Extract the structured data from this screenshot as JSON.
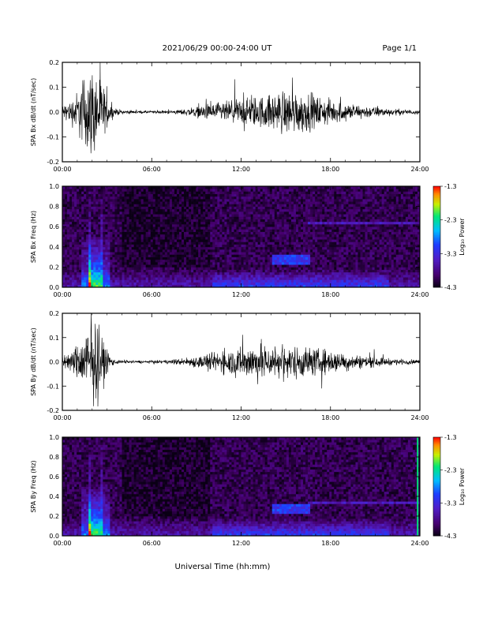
{
  "header": {
    "title": "2021/06/29  00:00-24:00 UT",
    "page": "Page 1/1"
  },
  "xlabel": "Universal Time (hh:mm)",
  "colorbar": {
    "label": "Log₁₀ Power",
    "ticks": [
      "-1.3",
      "-2.3",
      "-3.3",
      "-4.3"
    ],
    "range": [
      -4.3,
      -1.3
    ]
  },
  "chart_data": [
    {
      "type": "line",
      "ylabel": "SPA Bx dB/dt (nT/sec)",
      "xticks": [
        "00:00",
        "06:00",
        "12:00",
        "18:00",
        "24:00"
      ],
      "xlim": [
        0,
        24
      ],
      "yticks": [
        "0.2",
        "0.1",
        "0.0",
        "-0.1",
        "-0.2"
      ],
      "ylim": [
        -0.2,
        0.2
      ],
      "envelope": {
        "hours": [
          0,
          0.5,
          1,
          1.5,
          2,
          2.5,
          3,
          3.5,
          4,
          5,
          6,
          7,
          8,
          9,
          10,
          11,
          12,
          13,
          14,
          15,
          16,
          17,
          18,
          19,
          20,
          21,
          22,
          23,
          24
        ],
        "amplitude": [
          0.04,
          0.06,
          0.12,
          0.22,
          0.25,
          0.22,
          0.08,
          0.02,
          0.012,
          0.008,
          0.008,
          0.009,
          0.015,
          0.03,
          0.05,
          0.06,
          0.08,
          0.09,
          0.1,
          0.13,
          0.12,
          0.09,
          0.07,
          0.05,
          0.04,
          0.03,
          0.02,
          0.015,
          0.012
        ]
      }
    },
    {
      "type": "heatmap",
      "ylabel": "SPA Bx Freq (Hz)",
      "xticks": [
        "00:00",
        "06:00",
        "12:00",
        "18:00",
        "24:00"
      ],
      "xlim": [
        0,
        24
      ],
      "yticks": [
        "1.0",
        "0.8",
        "0.6",
        "0.4",
        "0.2",
        "0.0"
      ],
      "ylim": [
        0,
        1
      ],
      "zrange": [
        -4.3,
        -1.3
      ]
    },
    {
      "type": "line",
      "ylabel": "SPA By dB/dt (nT/sec)",
      "xticks": [
        "00:00",
        "06:00",
        "12:00",
        "18:00",
        "24:00"
      ],
      "xlim": [
        0,
        24
      ],
      "yticks": [
        "0.2",
        "0.1",
        "0.0",
        "-0.1",
        "-0.2"
      ],
      "ylim": [
        -0.2,
        0.2
      ],
      "envelope": {
        "hours": [
          0,
          0.5,
          1,
          1.5,
          2,
          2.5,
          3,
          3.5,
          4,
          5,
          6,
          7,
          8,
          9,
          10,
          11,
          12,
          13,
          14,
          15,
          16,
          17,
          18,
          19,
          20,
          21,
          22,
          23,
          24
        ],
        "amplitude": [
          0.04,
          0.05,
          0.1,
          0.18,
          0.25,
          0.2,
          0.07,
          0.015,
          0.01,
          0.008,
          0.008,
          0.01,
          0.02,
          0.035,
          0.05,
          0.07,
          0.09,
          0.11,
          0.1,
          0.09,
          0.1,
          0.08,
          0.07,
          0.05,
          0.04,
          0.03,
          0.02,
          0.015,
          0.012
        ]
      }
    },
    {
      "type": "heatmap",
      "ylabel": "SPA By Freq (Hz)",
      "xticks": [
        "00:00",
        "06:00",
        "12:00",
        "18:00",
        "24:00"
      ],
      "xlim": [
        0,
        24
      ],
      "yticks": [
        "1.0",
        "0.8",
        "0.6",
        "0.4",
        "0.2",
        "0.0"
      ],
      "ylim": [
        0,
        1
      ],
      "zrange": [
        -4.3,
        -1.3
      ]
    }
  ]
}
